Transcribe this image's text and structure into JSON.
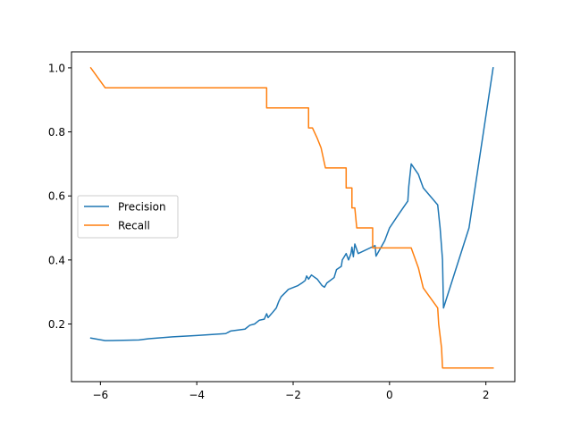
{
  "chart_data": {
    "type": "line",
    "title": "",
    "xlabel": "",
    "ylabel": "",
    "xlim": [
      -6.6,
      2.6
    ],
    "ylim": [
      0.02,
      1.05
    ],
    "xticks": [
      -6,
      -4,
      -2,
      0,
      2
    ],
    "xtick_labels": [
      "−6",
      "−4",
      "−2",
      "0",
      "2"
    ],
    "yticks": [
      0.2,
      0.4,
      0.6,
      0.8,
      1.0
    ],
    "ytick_labels": [
      "0.2",
      "0.4",
      "0.6",
      "0.8",
      "1.0"
    ],
    "grid": false,
    "legend": {
      "position": "center-left",
      "entries": [
        "Precision",
        "Recall"
      ]
    },
    "series": [
      {
        "name": "Precision",
        "color": "#1f77b4",
        "points": [
          [
            -6.2,
            0.156
          ],
          [
            -5.9,
            0.148
          ],
          [
            -5.2,
            0.15
          ],
          [
            -5.0,
            0.154
          ],
          [
            -4.5,
            0.16
          ],
          [
            -4.0,
            0.164
          ],
          [
            -3.4,
            0.17
          ],
          [
            -3.3,
            0.178
          ],
          [
            -3.0,
            0.184
          ],
          [
            -2.9,
            0.196
          ],
          [
            -2.8,
            0.2
          ],
          [
            -2.7,
            0.212
          ],
          [
            -2.6,
            0.215
          ],
          [
            -2.55,
            0.232
          ],
          [
            -2.52,
            0.22
          ],
          [
            -2.45,
            0.232
          ],
          [
            -2.35,
            0.25
          ],
          [
            -2.3,
            0.27
          ],
          [
            -2.25,
            0.285
          ],
          [
            -2.15,
            0.3
          ],
          [
            -2.1,
            0.308
          ],
          [
            -1.9,
            0.32
          ],
          [
            -1.8,
            0.33
          ],
          [
            -1.75,
            0.336
          ],
          [
            -1.72,
            0.35
          ],
          [
            -1.68,
            0.34
          ],
          [
            -1.62,
            0.353
          ],
          [
            -1.5,
            0.34
          ],
          [
            -1.4,
            0.32
          ],
          [
            -1.35,
            0.315
          ],
          [
            -1.3,
            0.328
          ],
          [
            -1.15,
            0.345
          ],
          [
            -1.1,
            0.37
          ],
          [
            -1.0,
            0.38
          ],
          [
            -0.98,
            0.4
          ],
          [
            -0.9,
            0.42
          ],
          [
            -0.85,
            0.4
          ],
          [
            -0.8,
            0.42
          ],
          [
            -0.78,
            0.44
          ],
          [
            -0.75,
            0.41
          ],
          [
            -0.72,
            0.45
          ],
          [
            -0.65,
            0.42
          ],
          [
            -0.3,
            0.445
          ],
          [
            -0.28,
            0.412
          ],
          [
            -0.1,
            0.46
          ],
          [
            0.0,
            0.5
          ],
          [
            0.2,
            0.545
          ],
          [
            0.38,
            0.584
          ],
          [
            0.4,
            0.63
          ],
          [
            0.45,
            0.7
          ],
          [
            0.6,
            0.667
          ],
          [
            0.7,
            0.625
          ],
          [
            1.0,
            0.572
          ],
          [
            1.05,
            0.5
          ],
          [
            1.1,
            0.4
          ],
          [
            1.12,
            0.25
          ],
          [
            1.65,
            0.5
          ],
          [
            2.15,
            1.0
          ]
        ]
      },
      {
        "name": "Recall",
        "color": "#ff7f0e",
        "points": [
          [
            -6.2,
            1.0
          ],
          [
            -5.9,
            0.9375
          ],
          [
            -2.55,
            0.9375
          ],
          [
            -2.55,
            0.875
          ],
          [
            -1.68,
            0.875
          ],
          [
            -1.68,
            0.8125
          ],
          [
            -1.6,
            0.8125
          ],
          [
            -1.5,
            0.78
          ],
          [
            -1.42,
            0.75
          ],
          [
            -1.33,
            0.6875
          ],
          [
            -0.9,
            0.6875
          ],
          [
            -0.9,
            0.625
          ],
          [
            -0.78,
            0.625
          ],
          [
            -0.78,
            0.5625
          ],
          [
            -0.72,
            0.5625
          ],
          [
            -0.68,
            0.5
          ],
          [
            -0.35,
            0.5
          ],
          [
            -0.35,
            0.4375
          ],
          [
            0.45,
            0.4375
          ],
          [
            0.6,
            0.375
          ],
          [
            0.7,
            0.3125
          ],
          [
            1.0,
            0.25
          ],
          [
            1.02,
            0.2
          ],
          [
            1.08,
            0.125
          ],
          [
            1.1,
            0.0625
          ],
          [
            2.15,
            0.0625
          ]
        ]
      }
    ]
  }
}
